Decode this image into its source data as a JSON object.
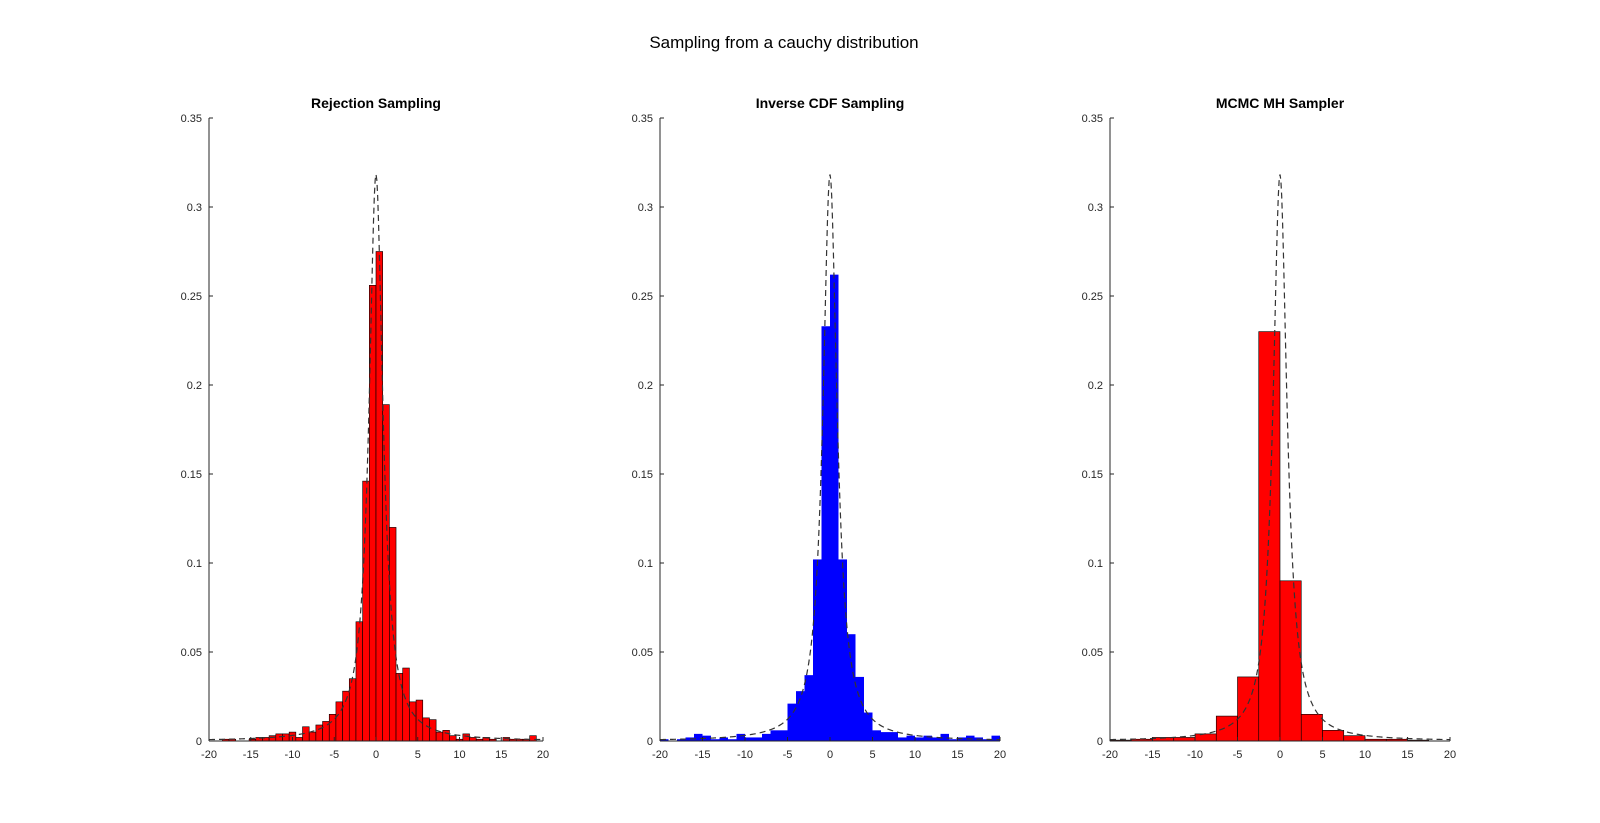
{
  "figure": {
    "suptitle": "Sampling from a cauchy distribution"
  },
  "colors": {
    "red": "#ff0000",
    "blue": "#0000ff",
    "edge": "#000000",
    "pdf_line": "#333333",
    "axis": "#262626"
  },
  "chart_data": [
    {
      "type": "bar",
      "title": "Rejection Sampling",
      "xlim": [
        -20,
        20
      ],
      "ylim": [
        0,
        0.35
      ],
      "xticks": [
        "-20",
        "-15",
        "-10",
        "-5",
        "0",
        "5",
        "10",
        "15",
        "20"
      ],
      "yticks": [
        "0",
        "0.05",
        "0.1",
        "0.15",
        "0.2",
        "0.25",
        "0.3",
        "0.35"
      ],
      "fill": "#ff0000",
      "edged": true,
      "bin_edges": [
        -20,
        -19.2,
        -18.4,
        -17.6,
        -16.8,
        -16,
        -15.2,
        -14.4,
        -13.6,
        -12.8,
        -12,
        -11.2,
        -10.4,
        -9.6,
        -8.8,
        -8,
        -7.2,
        -6.4,
        -5.6,
        -4.8,
        -4,
        -3.2,
        -2.4,
        -1.6,
        -0.8,
        0,
        0.8,
        1.6,
        2.4,
        3.2,
        4,
        4.8,
        5.6,
        6.4,
        7.2,
        8,
        8.8,
        9.6,
        10.4,
        11.2,
        12,
        12.8,
        13.6,
        14.4,
        15.2,
        16,
        16.8,
        17.6,
        18.4,
        19.2
      ],
      "values": [
        0,
        0,
        0.001,
        0.001,
        0,
        0,
        0.001,
        0.002,
        0.002,
        0.003,
        0.004,
        0.004,
        0.005,
        0.002,
        0.008,
        0.005,
        0.009,
        0.011,
        0.015,
        0.022,
        0.028,
        0.035,
        0.067,
        0.146,
        0.256,
        0.275,
        0.189,
        0.12,
        0.038,
        0.041,
        0.022,
        0.023,
        0.013,
        0.012,
        0.005,
        0.006,
        0.003,
        0.001,
        0.004,
        0.002,
        0.001,
        0.002,
        0.001,
        0,
        0.002,
        0.001,
        0.001,
        0.001,
        0.003
      ],
      "pdf": {
        "label": "cauchy pdf",
        "style": "dashed",
        "peak": 0.318
      }
    },
    {
      "type": "bar",
      "title": "Inverse CDF Sampling",
      "xlim": [
        -20,
        20
      ],
      "ylim": [
        0,
        0.35
      ],
      "xticks": [
        "-20",
        "-15",
        "-10",
        "-5",
        "0",
        "5",
        "10",
        "15",
        "20"
      ],
      "yticks": [
        "0",
        "0.05",
        "0.1",
        "0.15",
        "0.2",
        "0.25",
        "0.3",
        "0.35"
      ],
      "fill": "#0000ff",
      "edged": false,
      "bin_edges": [
        -20,
        -19,
        -18,
        -17,
        -16,
        -15,
        -14,
        -13,
        -12,
        -11,
        -10,
        -9,
        -8,
        -7,
        -6,
        -5,
        -4,
        -3,
        -2,
        -1,
        0,
        1,
        2,
        3,
        4,
        5,
        6,
        7,
        8,
        9,
        10,
        11,
        12,
        13,
        14,
        15,
        16,
        17,
        18,
        19
      ],
      "values": [
        0.001,
        0,
        0.001,
        0.002,
        0.004,
        0.003,
        0.001,
        0.002,
        0.001,
        0.004,
        0.002,
        0.002,
        0.004,
        0.006,
        0.006,
        0.021,
        0.028,
        0.037,
        0.102,
        0.233,
        0.262,
        0.102,
        0.06,
        0.036,
        0.016,
        0.006,
        0.005,
        0.005,
        0.002,
        0.003,
        0.002,
        0.003,
        0.002,
        0.004,
        0.001,
        0.002,
        0.003,
        0.002,
        0.001,
        0.003
      ],
      "pdf": {
        "label": "cauchy pdf",
        "style": "dashed",
        "peak": 0.318
      }
    },
    {
      "type": "bar",
      "title": "MCMC MH Sampler",
      "xlim": [
        -20,
        20
      ],
      "ylim": [
        0,
        0.35
      ],
      "xticks": [
        "-20",
        "-15",
        "-10",
        "-5",
        "0",
        "5",
        "10",
        "15",
        "20"
      ],
      "yticks": [
        "0",
        "0.05",
        "0.1",
        "0.15",
        "0.2",
        "0.25",
        "0.3",
        "0.35"
      ],
      "fill": "#ff0000",
      "edged": true,
      "bin_edges": [
        -20,
        -17.5,
        -15,
        -12.5,
        -10,
        -7.5,
        -5,
        -2.5,
        0,
        2.5,
        5,
        7.5,
        10,
        12.5,
        15,
        17.5
      ],
      "values": [
        0.0005,
        0.001,
        0.002,
        0.002,
        0.004,
        0.014,
        0.036,
        0.23,
        0.09,
        0.015,
        0.006,
        0.003,
        0.001,
        0.001,
        0.0005
      ],
      "pdf": {
        "label": "cauchy pdf",
        "style": "dashed",
        "peak": 0.318
      }
    }
  ]
}
